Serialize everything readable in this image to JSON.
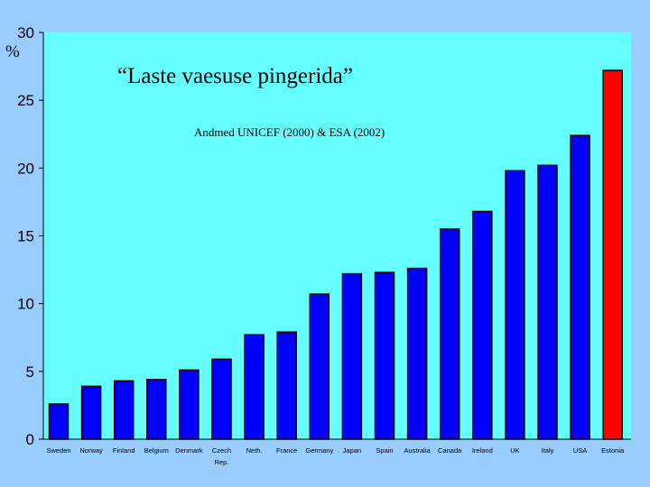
{
  "colors": {
    "page_background": "#99ccff",
    "plot_background": "#66ffff",
    "bar_default": "#0000ff",
    "bar_highlight": "#ff0000",
    "bar_outline": "#000000"
  },
  "chart_data": {
    "type": "bar",
    "title": "“Laste vaesuse pingerida”",
    "subtitle": "Andmed UNICEF (2000) & ESA (2002)",
    "ylabel": "%",
    "xlabel": "",
    "ylim": [
      0,
      30
    ],
    "yticks": [
      0,
      5,
      10,
      15,
      20,
      25,
      30
    ],
    "grid": false,
    "legend": "none",
    "categories": [
      "Sweden",
      "Norway",
      "Finland",
      "Belgium",
      "Denmark",
      "Czech Rep.",
      "Neth.",
      "France",
      "Germany",
      "Japan",
      "Spain",
      "Australia",
      "Canada",
      "Ireland",
      "UK",
      "Italy",
      "USA",
      "Estonia"
    ],
    "category_lines": [
      [
        "Sweden"
      ],
      [
        "Norway"
      ],
      [
        "Finland"
      ],
      [
        "Belgium"
      ],
      [
        "Denmark"
      ],
      [
        "Czech",
        "Rep."
      ],
      [
        "Neth."
      ],
      [
        "France"
      ],
      [
        "Germany"
      ],
      [
        "Japan"
      ],
      [
        "Spain"
      ],
      [
        "Australia"
      ],
      [
        "Canada"
      ],
      [
        "Ireland"
      ],
      [
        "UK"
      ],
      [
        "Italy"
      ],
      [
        "USA"
      ],
      [
        "Estonia"
      ]
    ],
    "values": [
      2.6,
      3.9,
      4.3,
      4.4,
      5.1,
      5.9,
      7.7,
      7.9,
      10.7,
      12.2,
      12.3,
      12.6,
      15.5,
      16.8,
      19.8,
      20.2,
      22.4,
      27.2
    ],
    "highlight": "Estonia"
  }
}
